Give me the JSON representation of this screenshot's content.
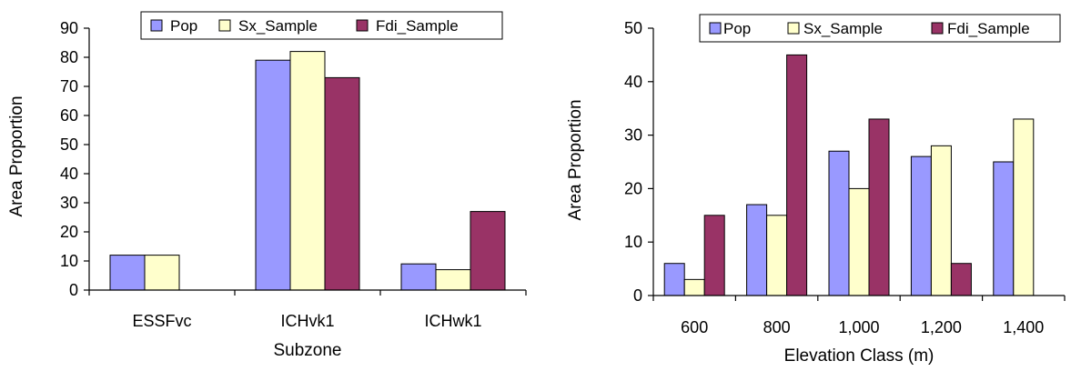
{
  "chart_data": [
    {
      "type": "bar",
      "categories": [
        "ESSFvc",
        "ICHvk1",
        "ICHwk1"
      ],
      "series": [
        {
          "name": "Pop",
          "values": [
            12,
            79,
            9
          ]
        },
        {
          "name": "Sx_Sample",
          "values": [
            12,
            82,
            7
          ]
        },
        {
          "name": "Fdi_Sample",
          "values": [
            0,
            73,
            27
          ]
        }
      ],
      "xlabel": "Subzone",
      "ylabel": "Area Proportion",
      "ylim": [
        0,
        90
      ],
      "yticks": [
        0,
        10,
        20,
        30,
        40,
        50,
        60,
        70,
        80,
        90
      ],
      "legend": "top",
      "grid": false
    },
    {
      "type": "bar",
      "categories": [
        "600",
        "800",
        "1,000",
        "1,200",
        "1,400"
      ],
      "series": [
        {
          "name": "Pop",
          "values": [
            6,
            17,
            27,
            26,
            25
          ]
        },
        {
          "name": "Sx_Sample",
          "values": [
            3,
            15,
            20,
            28,
            33
          ]
        },
        {
          "name": "Fdi_Sample",
          "values": [
            15,
            45,
            33,
            6,
            0
          ]
        }
      ],
      "xlabel": "Elevation Class (m)",
      "ylabel": "Area Proportion",
      "ylim": [
        0,
        50
      ],
      "yticks": [
        0,
        10,
        20,
        30,
        40,
        50
      ],
      "legend": "top",
      "grid": false
    }
  ],
  "colors": {
    "Pop": "#9999ff",
    "Sx_Sample": "#ffffcc",
    "Fdi_Sample": "#993366"
  }
}
